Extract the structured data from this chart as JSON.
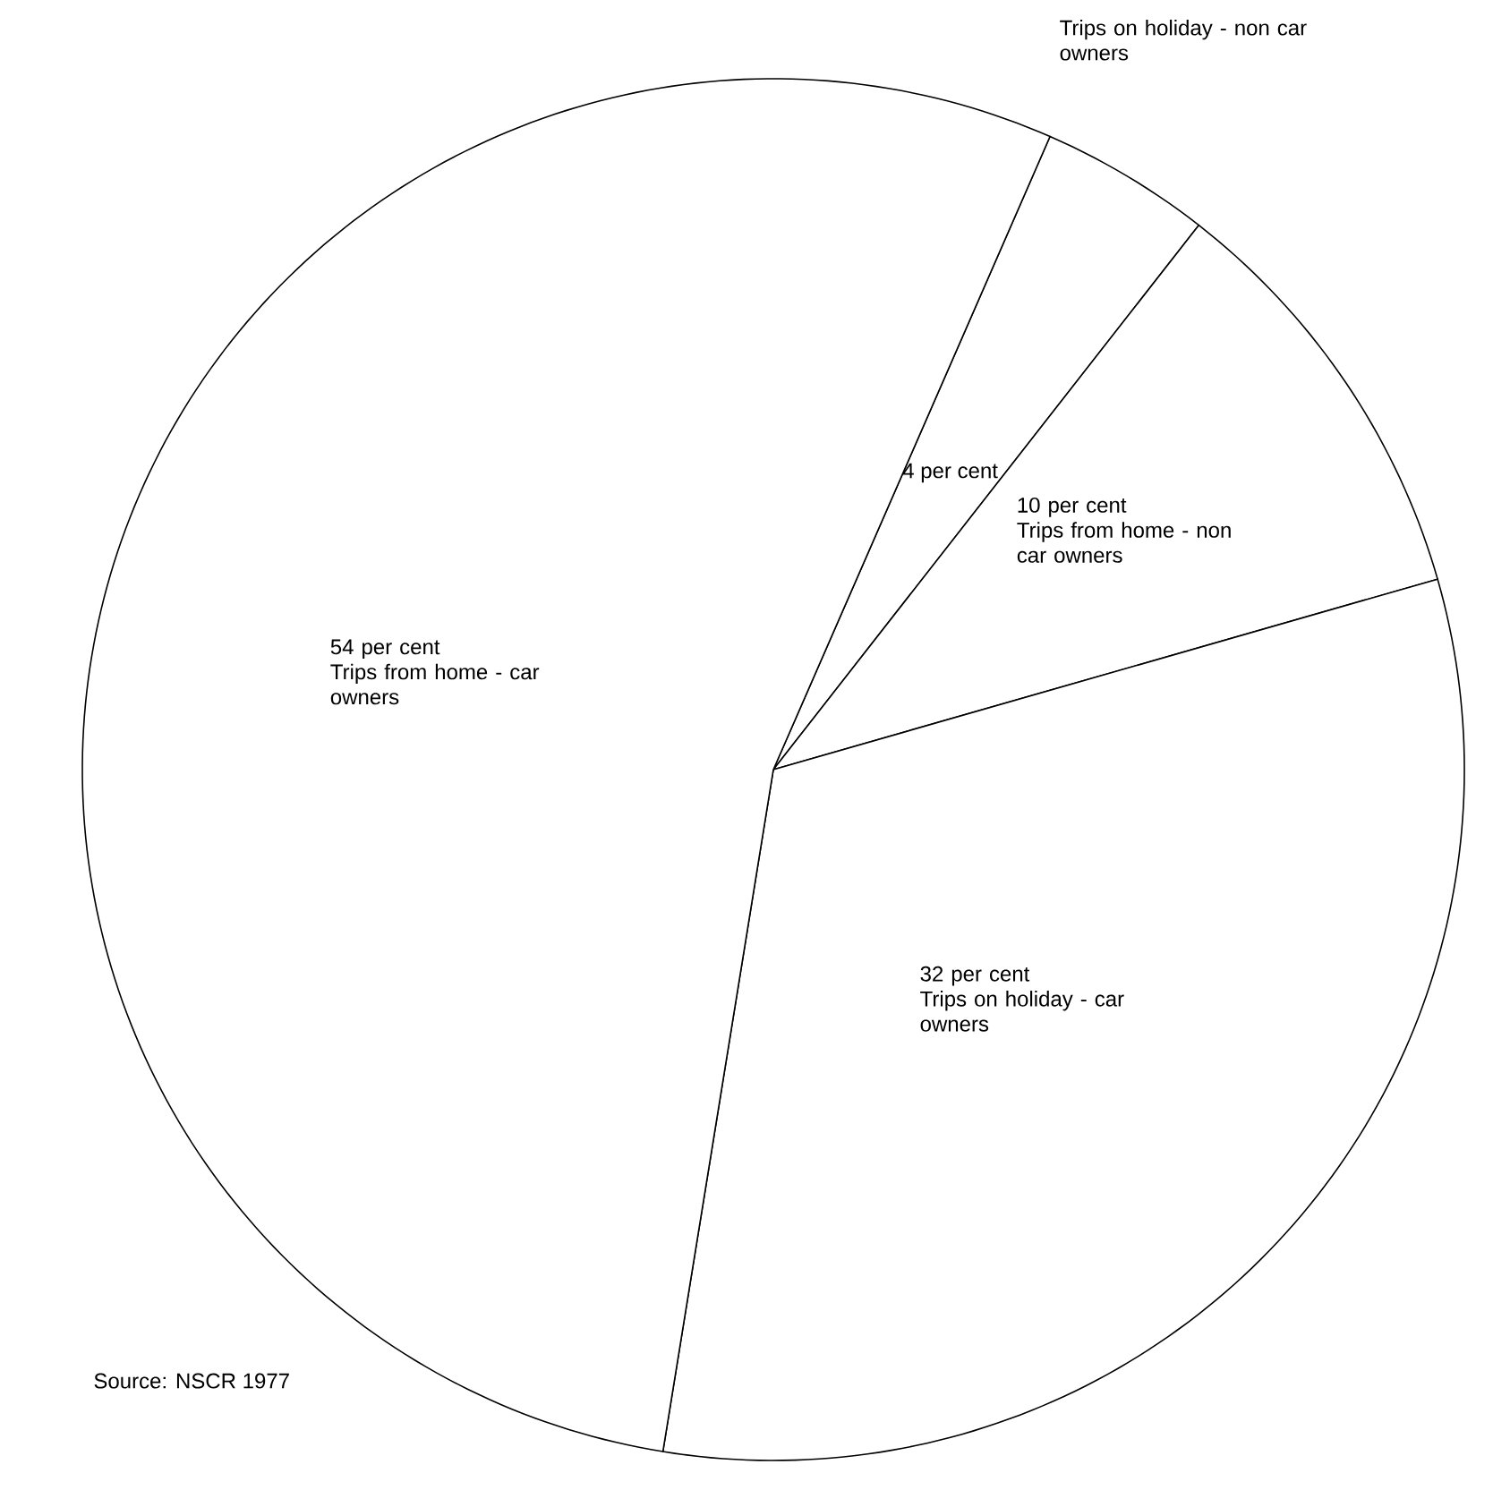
{
  "chart_data": {
    "type": "pie",
    "categories": [
      "Trips on holiday - non car owners",
      "Trips from home - non car owners",
      "Trips on holiday - car owners",
      "Trips from home - car owners"
    ],
    "values": [
      4,
      10,
      32,
      54
    ],
    "value_labels": [
      "4 per cent",
      "10 per cent",
      "32 per cent",
      "54 per cent"
    ],
    "colors": [
      "#ffffff",
      "#ffffff",
      "#ffffff",
      "#ffffff"
    ],
    "annotations": [
      "Source: NSCR 1977"
    ]
  }
}
